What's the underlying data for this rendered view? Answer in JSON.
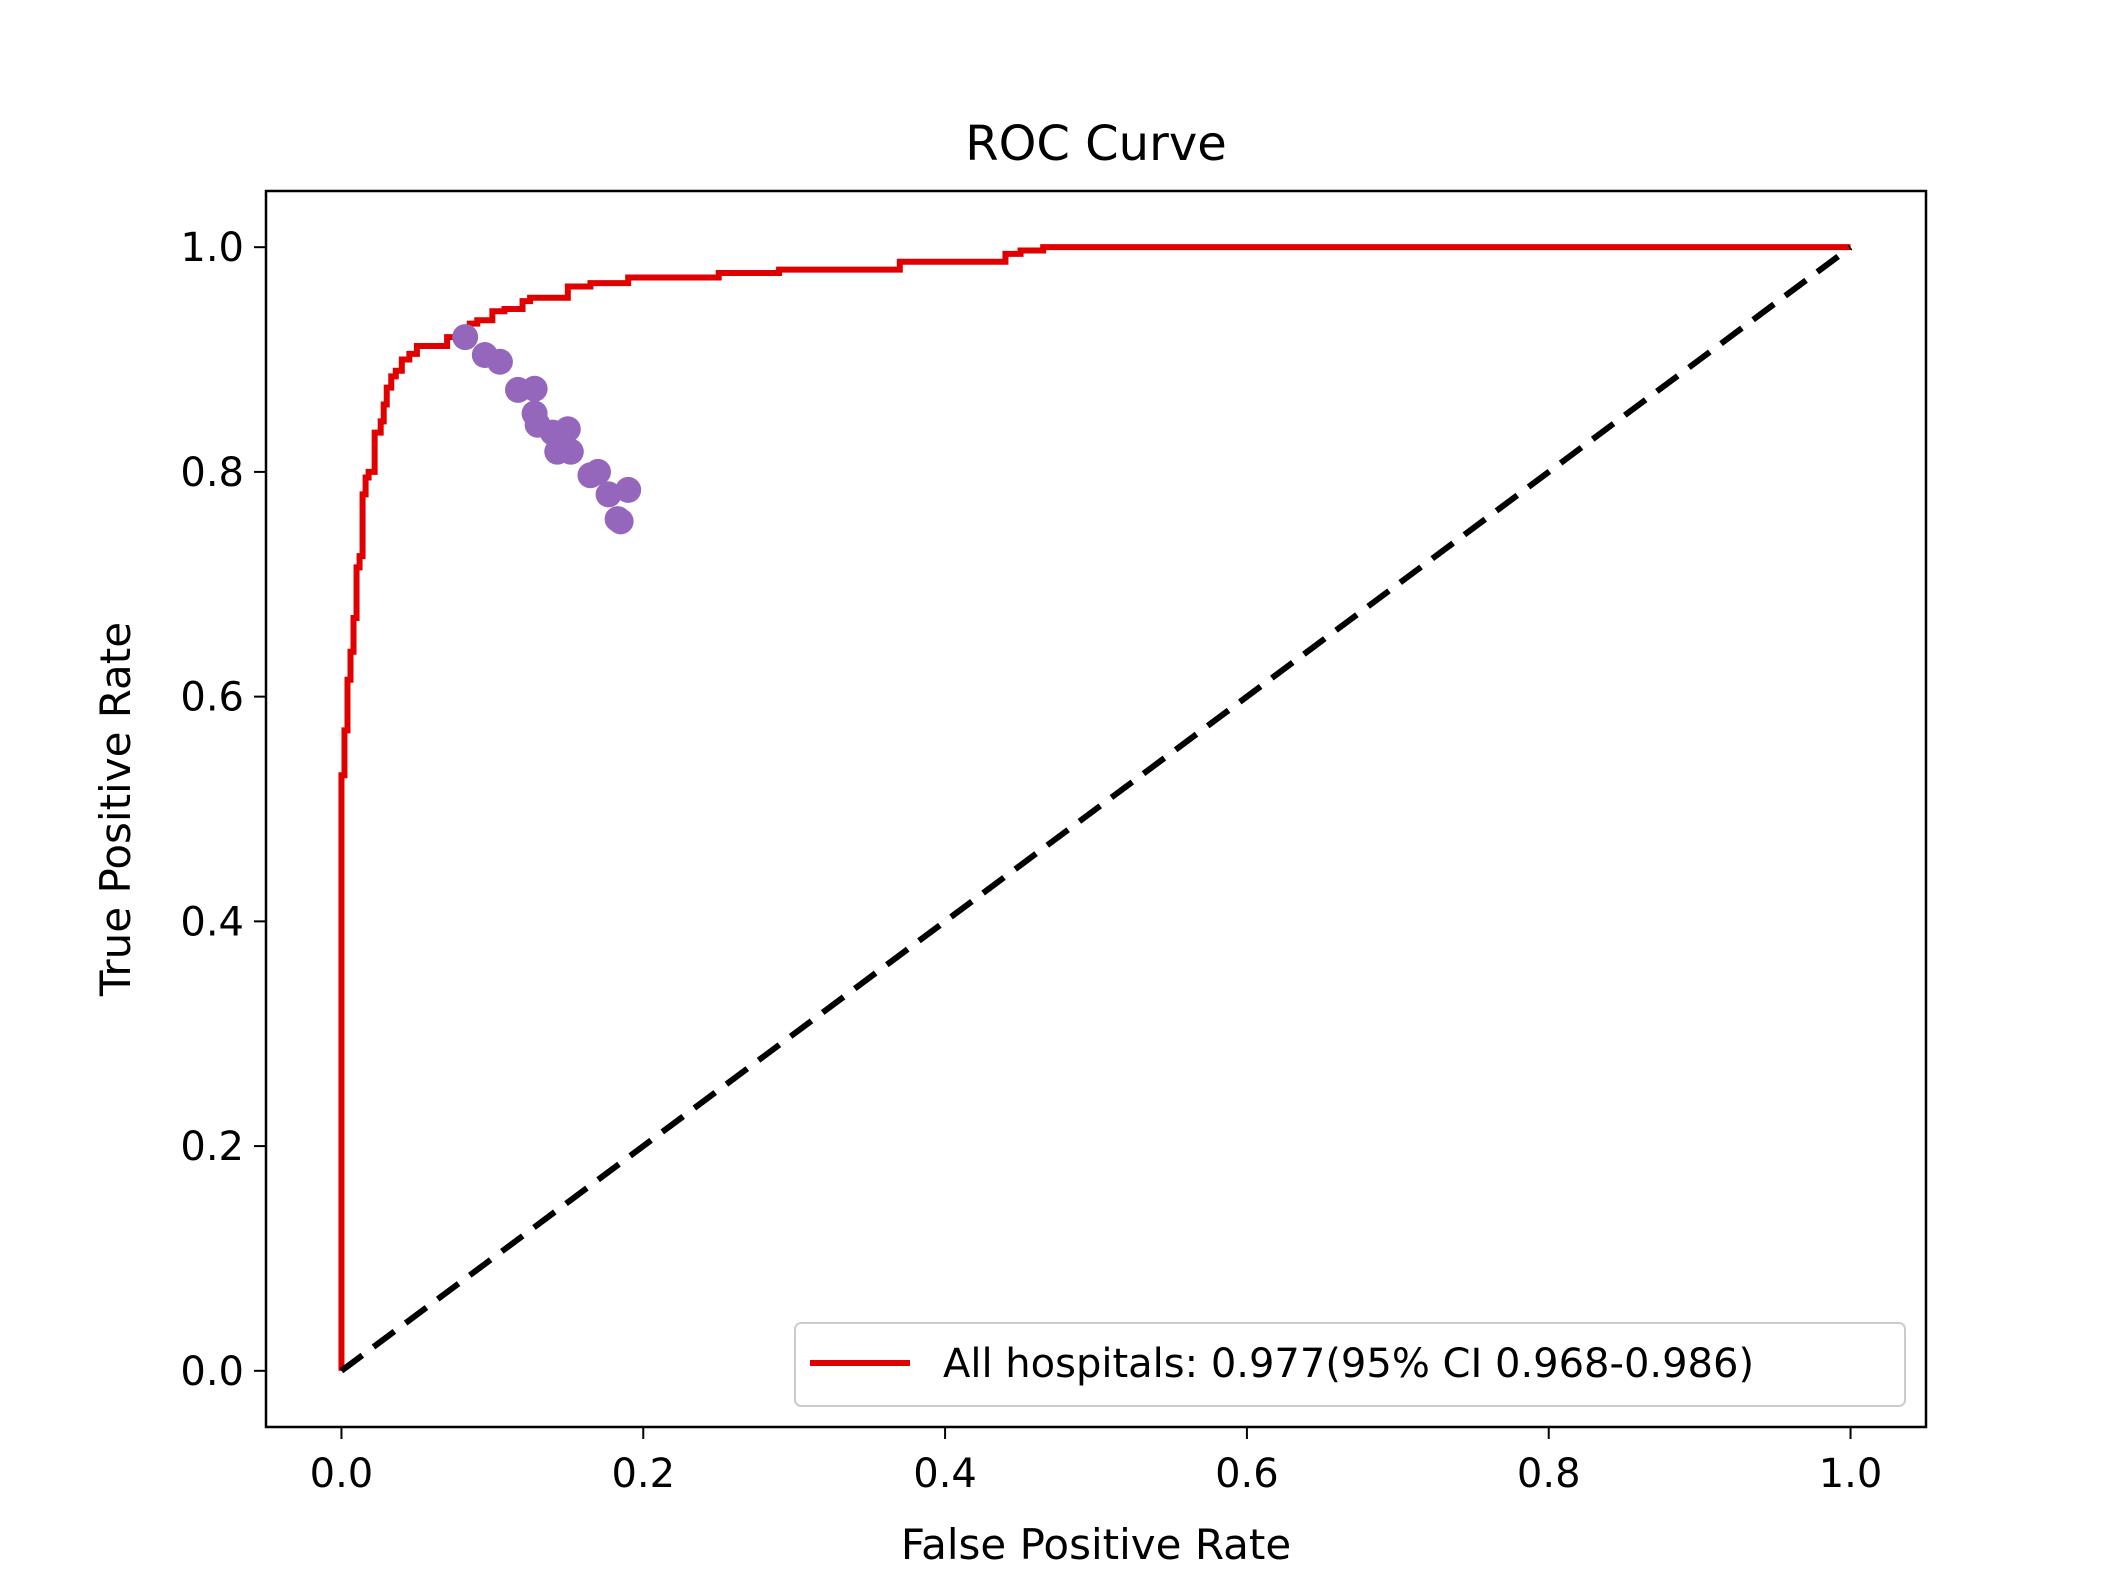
{
  "chart_data": {
    "type": "line",
    "title": "ROC Curve",
    "xlabel": "False Positive Rate",
    "ylabel": "True Positive Rate",
    "xlim": [
      -0.05,
      1.05
    ],
    "ylim": [
      -0.05,
      1.05
    ],
    "xticks": [
      0.0,
      0.2,
      0.4,
      0.6,
      0.8,
      1.0
    ],
    "yticks": [
      0.0,
      0.2,
      0.4,
      0.6,
      0.8,
      1.0
    ],
    "xtick_labels": [
      "0.0",
      "0.2",
      "0.4",
      "0.6",
      "0.8",
      "1.0"
    ],
    "ytick_labels": [
      "0.0",
      "0.2",
      "0.4",
      "0.6",
      "0.8",
      "1.0"
    ],
    "grid": false,
    "legend_position": "lower right",
    "series": [
      {
        "name": "All hospitals: 0.977(95% CI 0.968-0.986)",
        "kind": "step-line",
        "color": "#e00000",
        "x": [
          0.0,
          0.0,
          0.002,
          0.002,
          0.004,
          0.004,
          0.006,
          0.006,
          0.008,
          0.008,
          0.01,
          0.01,
          0.012,
          0.012,
          0.014,
          0.014,
          0.016,
          0.016,
          0.018,
          0.018,
          0.022,
          0.022,
          0.026,
          0.026,
          0.028,
          0.028,
          0.03,
          0.03,
          0.033,
          0.033,
          0.036,
          0.036,
          0.04,
          0.04,
          0.045,
          0.045,
          0.05,
          0.05,
          0.055,
          0.055,
          0.07,
          0.07,
          0.078,
          0.078,
          0.085,
          0.085,
          0.09,
          0.09,
          0.1,
          0.1,
          0.108,
          0.108,
          0.12,
          0.12,
          0.125,
          0.125,
          0.15,
          0.15,
          0.165,
          0.165,
          0.19,
          0.19,
          0.2,
          0.2,
          0.25,
          0.25,
          0.29,
          0.29,
          0.37,
          0.37,
          0.39,
          0.39,
          0.44,
          0.44,
          0.45,
          0.45,
          0.465,
          0.465,
          1.0
        ],
        "y": [
          0.0,
          0.53,
          0.53,
          0.57,
          0.57,
          0.615,
          0.615,
          0.64,
          0.64,
          0.67,
          0.67,
          0.715,
          0.715,
          0.725,
          0.725,
          0.78,
          0.78,
          0.795,
          0.795,
          0.8,
          0.8,
          0.835,
          0.835,
          0.845,
          0.845,
          0.86,
          0.86,
          0.875,
          0.875,
          0.885,
          0.885,
          0.89,
          0.89,
          0.9,
          0.9,
          0.905,
          0.905,
          0.912,
          0.912,
          0.912,
          0.912,
          0.92,
          0.92,
          0.925,
          0.925,
          0.932,
          0.932,
          0.935,
          0.935,
          0.943,
          0.943,
          0.945,
          0.945,
          0.952,
          0.952,
          0.955,
          0.955,
          0.965,
          0.965,
          0.968,
          0.968,
          0.973,
          0.973,
          0.973,
          0.973,
          0.977,
          0.977,
          0.98,
          0.98,
          0.987,
          0.987,
          0.987,
          0.987,
          0.994,
          0.994,
          0.997,
          0.997,
          1.0,
          1.0
        ]
      },
      {
        "name": "",
        "kind": "dashed-line",
        "color": "#000000",
        "x": [
          0.0,
          1.0
        ],
        "y": [
          0.0,
          1.0
        ]
      },
      {
        "name": "",
        "kind": "scatter",
        "color": "#9467bd",
        "x": [
          0.082,
          0.095,
          0.105,
          0.117,
          0.128,
          0.128,
          0.13,
          0.14,
          0.143,
          0.15,
          0.152,
          0.165,
          0.17,
          0.177,
          0.183,
          0.185,
          0.19
        ],
        "y": [
          0.92,
          0.904,
          0.898,
          0.873,
          0.874,
          0.852,
          0.842,
          0.835,
          0.818,
          0.838,
          0.818,
          0.797,
          0.8,
          0.78,
          0.758,
          0.756,
          0.784
        ]
      }
    ]
  }
}
